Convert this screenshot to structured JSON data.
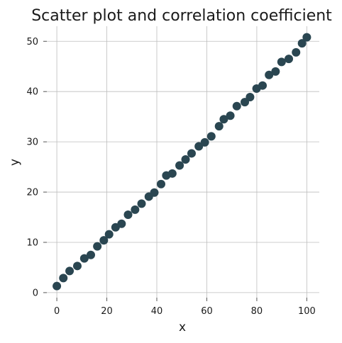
{
  "chart_data": {
    "type": "scatter",
    "title": "Scatter plot and correlation coefficient",
    "xlabel": "x",
    "ylabel": "y",
    "xlim": [
      -4,
      105
    ],
    "ylim": [
      -1,
      53
    ],
    "xticks": [
      0,
      20,
      40,
      60,
      80,
      100
    ],
    "yticks": [
      0,
      10,
      20,
      30,
      40,
      50
    ],
    "grid": true,
    "marker_color": "#2a4651",
    "grid_color": "#bdbdbd",
    "series": [
      {
        "x": [
          0.0,
          2.6,
          5.1,
          8.2,
          11.0,
          13.6,
          16.2,
          18.8,
          20.9,
          23.5,
          25.9,
          28.5,
          31.3,
          33.9,
          36.8,
          39.0,
          41.7,
          43.8,
          46.2,
          49.1,
          51.5,
          53.9,
          56.8,
          59.2,
          61.8,
          64.9,
          66.8,
          69.4,
          72.0,
          75.2,
          77.3,
          79.9,
          82.3,
          84.9,
          87.5,
          89.9,
          92.8,
          95.7,
          98.1,
          100.0
        ],
        "y": [
          1.3,
          2.9,
          4.3,
          5.3,
          6.8,
          7.5,
          9.2,
          10.4,
          11.6,
          13.0,
          13.7,
          15.5,
          16.5,
          17.7,
          19.1,
          19.9,
          21.6,
          23.3,
          23.7,
          25.3,
          26.5,
          27.7,
          29.1,
          29.9,
          31.1,
          33.1,
          34.5,
          35.2,
          37.1,
          37.9,
          38.9,
          40.6,
          41.2,
          43.3,
          44.0,
          45.9,
          46.5,
          47.8,
          49.6,
          50.8
        ]
      }
    ]
  }
}
